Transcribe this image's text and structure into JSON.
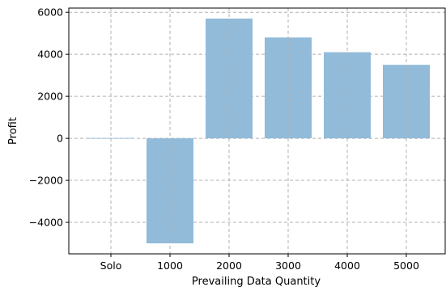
{
  "chart_data": {
    "type": "bar",
    "categories": [
      "Solo",
      "1000",
      "2000",
      "3000",
      "4000",
      "5000"
    ],
    "values": [
      0,
      -5000,
      5700,
      4800,
      4100,
      3500
    ],
    "title": "",
    "xlabel": "Prevailing Data Quantity",
    "ylabel": "Profit",
    "ylim": [
      -5500,
      6200
    ],
    "yticks": [
      6000,
      4000,
      2000,
      0,
      -2000,
      -4000
    ],
    "ytick_labels": [
      "6000",
      "4000",
      "2000",
      "0",
      "−2000",
      "−4000"
    ],
    "grid": true,
    "bar_color": "#92bbd9",
    "grid_color": "#b0b0b0"
  }
}
